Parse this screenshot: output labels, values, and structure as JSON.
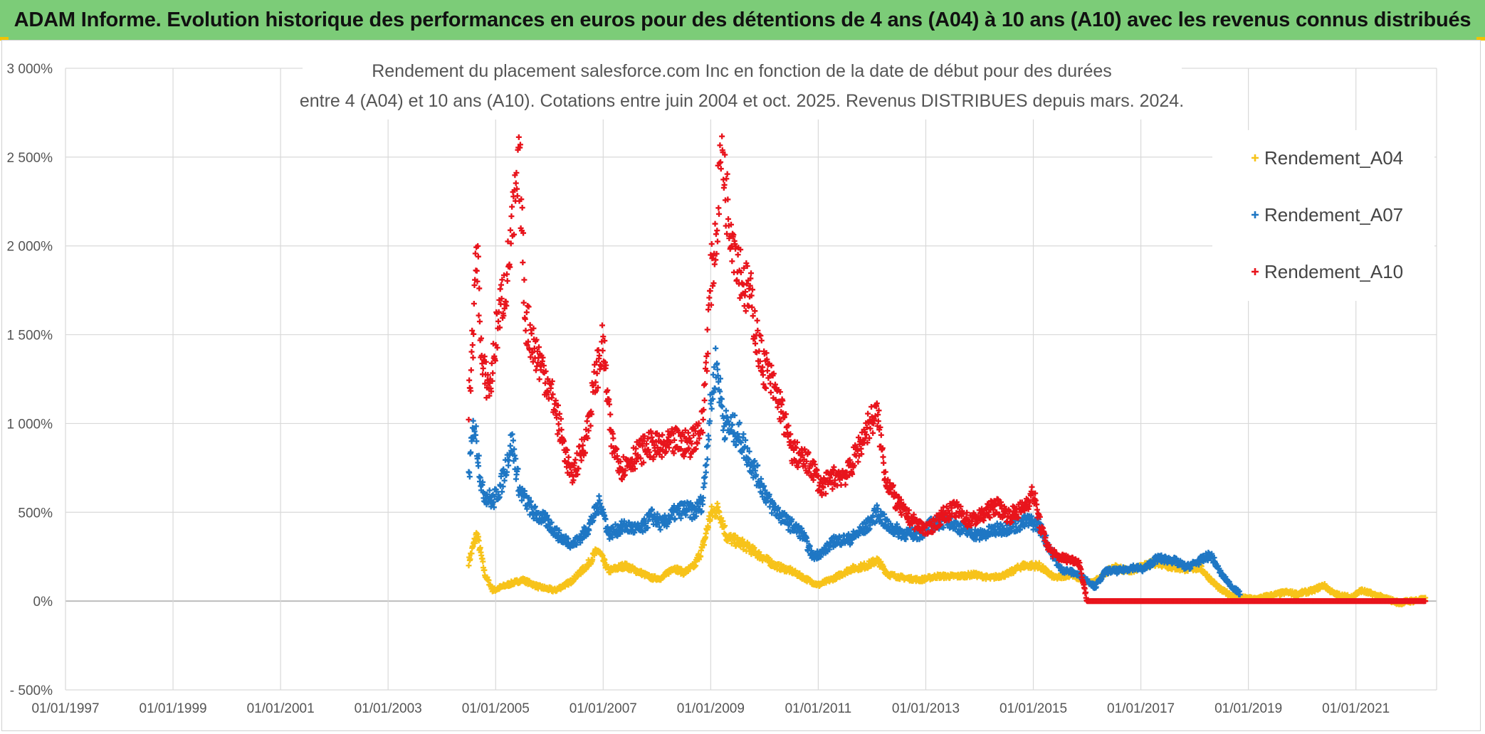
{
  "banner": {
    "title": "ADAM Informe. Evolution historique des performances en euros pour des détentions de 4 ans (A04) à 10 ans (A10) avec les revenus connus distribués"
  },
  "colors": {
    "banner_bg": "#7ccc78",
    "series_A04": "#f7c31a",
    "series_A07": "#1f77c4",
    "series_A10": "#e8141c",
    "grid": "#d9d9d9"
  },
  "chart_data": {
    "type": "scatter",
    "title_line1": "Rendement du placement salesforce.com Inc en fonction de la date de début pour des durées",
    "title_line2": "entre 4 (A04) et 10 ans (A10). Cotations entre juin 2004 et oct. 2025. Revenus DISTRIBUES depuis mars. 2024.",
    "xlabel": "",
    "ylabel": "",
    "x_range": [
      1997.0,
      2022.5
    ],
    "ylim": [
      -500,
      3000
    ],
    "y_ticks": [
      -500,
      0,
      500,
      1000,
      1500,
      2000,
      2500,
      3000
    ],
    "y_tick_labels": [
      "- 500%",
      "0%",
      "500%",
      "1 000%",
      "1 500%",
      "2 000%",
      "2 500%",
      "3 000%"
    ],
    "x_ticks": [
      1997,
      1999,
      2001,
      2003,
      2005,
      2007,
      2009,
      2011,
      2013,
      2015,
      2017,
      2019,
      2021
    ],
    "x_tick_labels": [
      "01/01/1997",
      "01/01/1999",
      "01/01/2001",
      "01/01/2003",
      "01/01/2005",
      "01/01/2007",
      "01/01/2009",
      "01/01/2011",
      "01/01/2013",
      "01/01/2015",
      "01/01/2017",
      "01/01/2019",
      "01/01/2021"
    ],
    "legend_position": "right",
    "series": [
      {
        "name": "Rendement_A04",
        "points": [
          [
            2004.5,
            220
          ],
          [
            2004.65,
            380
          ],
          [
            2004.8,
            150
          ],
          [
            2004.95,
            60
          ],
          [
            2005.2,
            90
          ],
          [
            2005.5,
            120
          ],
          [
            2005.8,
            80
          ],
          [
            2006.1,
            60
          ],
          [
            2006.4,
            110
          ],
          [
            2006.7,
            200
          ],
          [
            2006.9,
            290
          ],
          [
            2007.1,
            170
          ],
          [
            2007.4,
            200
          ],
          [
            2007.7,
            160
          ],
          [
            2007.9,
            130
          ],
          [
            2008.1,
            130
          ],
          [
            2008.3,
            190
          ],
          [
            2008.5,
            160
          ],
          [
            2008.7,
            200
          ],
          [
            2008.85,
            300
          ],
          [
            2009.0,
            490
          ],
          [
            2009.15,
            520
          ],
          [
            2009.3,
            360
          ],
          [
            2009.6,
            320
          ],
          [
            2009.9,
            260
          ],
          [
            2010.2,
            200
          ],
          [
            2010.5,
            170
          ],
          [
            2010.8,
            120
          ],
          [
            2011.0,
            90
          ],
          [
            2011.3,
            130
          ],
          [
            2011.6,
            180
          ],
          [
            2011.9,
            200
          ],
          [
            2012.1,
            230
          ],
          [
            2012.3,
            150
          ],
          [
            2012.6,
            130
          ],
          [
            2012.9,
            120
          ],
          [
            2013.2,
            140
          ],
          [
            2013.6,
            140
          ],
          [
            2013.9,
            150
          ],
          [
            2014.2,
            130
          ],
          [
            2014.5,
            150
          ],
          [
            2014.8,
            200
          ],
          [
            2015.1,
            200
          ],
          [
            2015.4,
            130
          ],
          [
            2015.7,
            150
          ],
          [
            2015.9,
            120
          ],
          [
            2016.1,
            100
          ],
          [
            2016.3,
            150
          ],
          [
            2016.5,
            190
          ],
          [
            2016.8,
            170
          ],
          [
            2017.0,
            190
          ],
          [
            2017.3,
            220
          ],
          [
            2017.6,
            190
          ],
          [
            2017.9,
            180
          ],
          [
            2018.1,
            190
          ],
          [
            2018.3,
            120
          ],
          [
            2018.5,
            60
          ],
          [
            2018.8,
            20
          ],
          [
            2019.1,
            10
          ],
          [
            2019.4,
            30
          ],
          [
            2019.7,
            50
          ],
          [
            2019.9,
            40
          ],
          [
            2020.2,
            60
          ],
          [
            2020.4,
            90
          ],
          [
            2020.6,
            40
          ],
          [
            2020.9,
            20
          ],
          [
            2021.1,
            60
          ],
          [
            2021.3,
            40
          ],
          [
            2021.5,
            20
          ],
          [
            2021.8,
            -10
          ],
          [
            2022.0,
            0
          ],
          [
            2022.3,
            10
          ]
        ]
      },
      {
        "name": "Rendement_A07",
        "points": [
          [
            2004.5,
            700
          ],
          [
            2004.6,
            1020
          ],
          [
            2004.75,
            620
          ],
          [
            2004.95,
            560
          ],
          [
            2005.1,
            650
          ],
          [
            2005.3,
            900
          ],
          [
            2005.45,
            620
          ],
          [
            2005.7,
            500
          ],
          [
            2005.95,
            450
          ],
          [
            2006.2,
            360
          ],
          [
            2006.45,
            320
          ],
          [
            2006.7,
            400
          ],
          [
            2006.95,
            560
          ],
          [
            2007.1,
            380
          ],
          [
            2007.4,
            420
          ],
          [
            2007.7,
            400
          ],
          [
            2007.9,
            480
          ],
          [
            2008.1,
            430
          ],
          [
            2008.3,
            490
          ],
          [
            2008.5,
            520
          ],
          [
            2008.7,
            500
          ],
          [
            2008.85,
            560
          ],
          [
            2009.0,
            1100
          ],
          [
            2009.1,
            1350
          ],
          [
            2009.25,
            1000
          ],
          [
            2009.5,
            950
          ],
          [
            2009.8,
            750
          ],
          [
            2010.1,
            550
          ],
          [
            2010.4,
            450
          ],
          [
            2010.7,
            380
          ],
          [
            2010.9,
            250
          ],
          [
            2011.1,
            280
          ],
          [
            2011.3,
            340
          ],
          [
            2011.6,
            350
          ],
          [
            2011.9,
            420
          ],
          [
            2012.1,
            500
          ],
          [
            2012.3,
            420
          ],
          [
            2012.6,
            380
          ],
          [
            2012.9,
            380
          ],
          [
            2013.1,
            430
          ],
          [
            2013.4,
            460
          ],
          [
            2013.7,
            400
          ],
          [
            2014.0,
            370
          ],
          [
            2014.3,
            400
          ],
          [
            2014.6,
            420
          ],
          [
            2014.9,
            450
          ],
          [
            2015.1,
            430
          ],
          [
            2015.3,
            300
          ],
          [
            2015.5,
            180
          ],
          [
            2015.75,
            160
          ],
          [
            2015.95,
            130
          ],
          [
            2016.15,
            80
          ],
          [
            2016.35,
            170
          ],
          [
            2016.6,
            170
          ],
          [
            2016.85,
            190
          ],
          [
            2017.05,
            180
          ],
          [
            2017.3,
            240
          ],
          [
            2017.6,
            230
          ],
          [
            2017.85,
            190
          ],
          [
            2018.05,
            220
          ],
          [
            2018.3,
            260
          ],
          [
            2018.5,
            150
          ],
          [
            2018.7,
            80
          ],
          [
            2018.85,
            40
          ]
        ]
      },
      {
        "name": "Rendement_A10",
        "points": [
          [
            2004.5,
            1100
          ],
          [
            2004.58,
            1500
          ],
          [
            2004.65,
            2000
          ],
          [
            2004.75,
            1300
          ],
          [
            2004.9,
            1200
          ],
          [
            2005.05,
            1600
          ],
          [
            2005.2,
            1800
          ],
          [
            2005.35,
            2200
          ],
          [
            2005.45,
            2450
          ],
          [
            2005.55,
            1600
          ],
          [
            2005.75,
            1400
          ],
          [
            2005.95,
            1250
          ],
          [
            2006.1,
            1100
          ],
          [
            2006.25,
            900
          ],
          [
            2006.4,
            700
          ],
          [
            2006.55,
            800
          ],
          [
            2006.7,
            950
          ],
          [
            2006.85,
            1250
          ],
          [
            2007.0,
            1450
          ],
          [
            2007.15,
            900
          ],
          [
            2007.35,
            750
          ],
          [
            2007.6,
            820
          ],
          [
            2007.85,
            880
          ],
          [
            2008.1,
            860
          ],
          [
            2008.35,
            900
          ],
          [
            2008.6,
            880
          ],
          [
            2008.85,
            1000
          ],
          [
            2009.0,
            1800
          ],
          [
            2009.1,
            2050
          ],
          [
            2009.2,
            2600
          ],
          [
            2009.3,
            2250
          ],
          [
            2009.45,
            2000
          ],
          [
            2009.6,
            1800
          ],
          [
            2009.75,
            1700
          ],
          [
            2009.9,
            1400
          ],
          [
            2010.1,
            1250
          ],
          [
            2010.3,
            1100
          ],
          [
            2010.5,
            850
          ],
          [
            2010.7,
            800
          ],
          [
            2010.9,
            750
          ],
          [
            2011.05,
            640
          ],
          [
            2011.3,
            700
          ],
          [
            2011.55,
            720
          ],
          [
            2011.75,
            860
          ],
          [
            2011.95,
            1000
          ],
          [
            2012.1,
            1050
          ],
          [
            2012.25,
            700
          ],
          [
            2012.45,
            560
          ],
          [
            2012.65,
            480
          ],
          [
            2012.85,
            430
          ],
          [
            2013.05,
            400
          ],
          [
            2013.3,
            480
          ],
          [
            2013.55,
            520
          ],
          [
            2013.8,
            450
          ],
          [
            2014.05,
            480
          ],
          [
            2014.3,
            540
          ],
          [
            2014.55,
            480
          ],
          [
            2014.8,
            520
          ],
          [
            2015.0,
            610
          ],
          [
            2015.15,
            400
          ],
          [
            2015.3,
            290
          ],
          [
            2015.45,
            250
          ],
          [
            2015.6,
            240
          ],
          [
            2015.75,
            230
          ],
          [
            2015.85,
            220
          ],
          [
            2016.0,
            0
          ],
          [
            2016.5,
            0
          ],
          [
            2017.0,
            0
          ],
          [
            2017.5,
            0
          ],
          [
            2018.0,
            0
          ],
          [
            2018.5,
            0
          ],
          [
            2019.0,
            0
          ],
          [
            2019.5,
            0
          ],
          [
            2020.0,
            0
          ],
          [
            2020.5,
            0
          ],
          [
            2021.0,
            0
          ],
          [
            2021.5,
            0
          ],
          [
            2022.0,
            0
          ],
          [
            2022.3,
            0
          ]
        ]
      }
    ]
  }
}
